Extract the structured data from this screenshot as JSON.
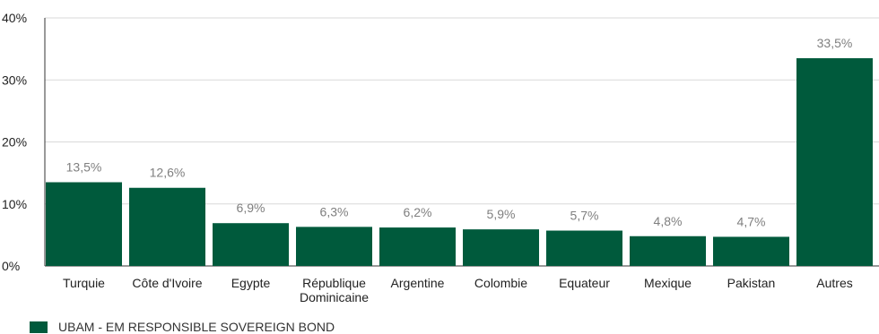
{
  "colors": {
    "bar": "#005a3c",
    "grid": "#d9d9d9",
    "axis": "#333333",
    "value_label": "#7f7f7f",
    "text": "#222222"
  },
  "chart_data": {
    "type": "bar",
    "categories": [
      "Turquie",
      "Côte d'Ivoire",
      "Egypte",
      "République Dominicaine",
      "Argentine",
      "Colombie",
      "Equateur",
      "Mexique",
      "Pakistan",
      "Autres"
    ],
    "category_lines": [
      [
        "Turquie"
      ],
      [
        "Côte d'Ivoire"
      ],
      [
        "Egypte"
      ],
      [
        "République",
        "Dominicaine"
      ],
      [
        "Argentine"
      ],
      [
        "Colombie"
      ],
      [
        "Equateur"
      ],
      [
        "Mexique"
      ],
      [
        "Pakistan"
      ],
      [
        "Autres"
      ]
    ],
    "series": [
      {
        "name": "UBAM - EM RESPONSIBLE SOVEREIGN BOND",
        "values": [
          13.5,
          12.6,
          6.9,
          6.3,
          6.2,
          5.9,
          5.7,
          4.8,
          4.7,
          33.5
        ]
      }
    ],
    "value_labels": [
      "13,5%",
      "12,6%",
      "6,9%",
      "6,3%",
      "6,2%",
      "5,9%",
      "5,7%",
      "4,8%",
      "4,7%",
      "33,5%"
    ],
    "ylim": [
      0,
      40
    ],
    "yticks": [
      0,
      10,
      20,
      30,
      40
    ],
    "ytick_labels": [
      "0%",
      "10%",
      "20%",
      "30%",
      "40%"
    ],
    "grid": true,
    "legend_position": "bottom-left"
  }
}
